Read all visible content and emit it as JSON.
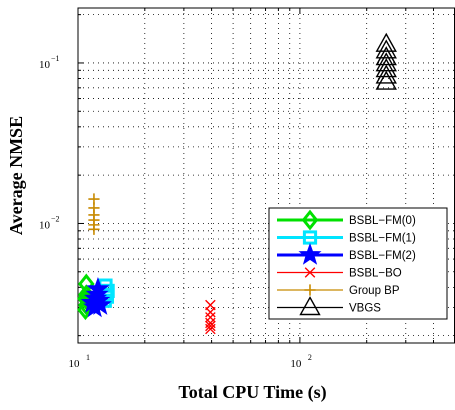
{
  "chart_data": {
    "type": "scatter",
    "xlabel": "Total CPU Time (s)",
    "ylabel": "Average NMSE",
    "x_scale": "log",
    "y_scale": "log",
    "xlim": [
      10,
      500
    ],
    "ylim": [
      0.0018,
      0.22
    ],
    "x_ticks": [
      {
        "value": 10,
        "base": "10",
        "exp": "1"
      },
      {
        "value": 100,
        "base": "10",
        "exp": "2"
      }
    ],
    "y_ticks": [
      {
        "value": 0.01,
        "base": "10",
        "exp": "−2"
      },
      {
        "value": 0.1,
        "base": "10",
        "exp": "−1"
      }
    ],
    "grid": true,
    "legend_position": "bottom-right",
    "series": [
      {
        "name": "BSBL−FM(0)",
        "color": "#00e000",
        "marker": "diamond",
        "points": [
          [
            10.9,
            0.0042
          ],
          [
            10.8,
            0.0034
          ],
          [
            10.9,
            0.0031
          ],
          [
            10.8,
            0.0029
          ],
          [
            11.0,
            0.0033
          ],
          [
            10.9,
            0.0036
          ]
        ]
      },
      {
        "name": "BSBL−FM(1)",
        "color": "#00e5ff",
        "marker": "square",
        "points": [
          [
            13.3,
            0.0041
          ],
          [
            13.6,
            0.0038
          ],
          [
            13.5,
            0.0035
          ],
          [
            13.2,
            0.0033
          ],
          [
            13.4,
            0.0036
          ]
        ]
      },
      {
        "name": "BSBL−FM(2)",
        "color": "#0000ff",
        "marker": "star",
        "points": [
          [
            12.3,
            0.0039
          ],
          [
            12.2,
            0.0036
          ],
          [
            12.0,
            0.0034
          ],
          [
            11.6,
            0.0032
          ],
          [
            12.6,
            0.0031
          ],
          [
            11.9,
            0.003
          ],
          [
            12.4,
            0.0033
          ]
        ]
      },
      {
        "name": "BSBL−BO",
        "color": "#ff0000",
        "marker": "x",
        "points": [
          [
            39.5,
            0.0031
          ],
          [
            39.5,
            0.0028
          ],
          [
            39.5,
            0.0026
          ],
          [
            39.5,
            0.0024
          ],
          [
            39.5,
            0.0023
          ],
          [
            39.5,
            0.0022
          ]
        ]
      },
      {
        "name": "Group BP",
        "color": "#c88a00",
        "marker": "plus",
        "points": [
          [
            11.8,
            0.0142
          ],
          [
            11.8,
            0.0125
          ],
          [
            11.8,
            0.0113
          ],
          [
            11.8,
            0.0105
          ],
          [
            11.8,
            0.0098
          ],
          [
            11.8,
            0.0092
          ]
        ]
      },
      {
        "name": "VBGS",
        "color": "#000000",
        "marker": "triangle",
        "points": [
          [
            245,
            0.131
          ],
          [
            245,
            0.119
          ],
          [
            245,
            0.108
          ],
          [
            245,
            0.099
          ],
          [
            245,
            0.091
          ],
          [
            245,
            0.083
          ],
          [
            245,
            0.076
          ]
        ]
      }
    ]
  }
}
